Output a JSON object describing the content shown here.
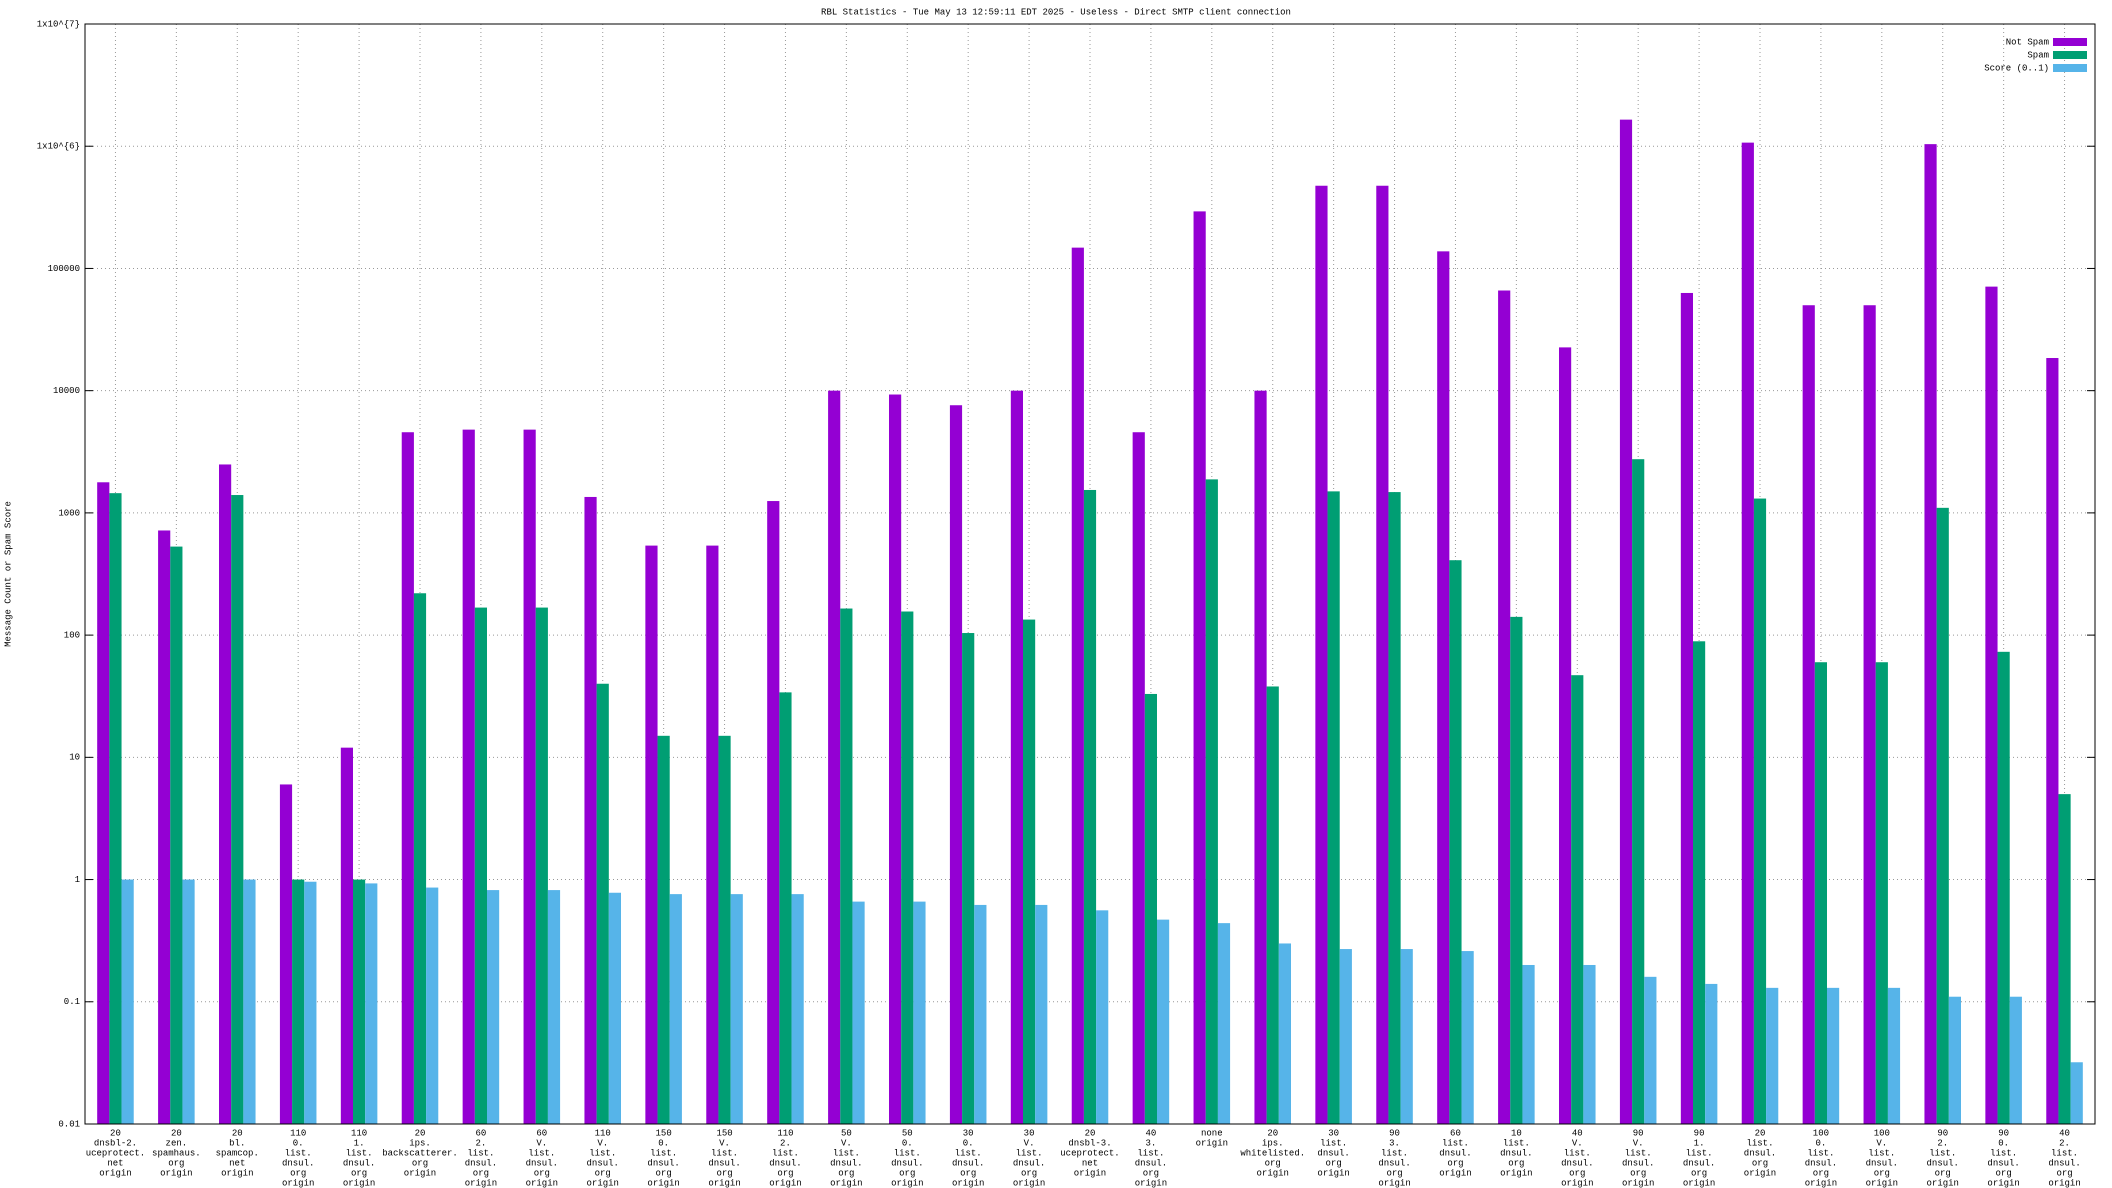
{
  "chart_data": {
    "type": "bar",
    "title": "RBL Statistics - Tue May 13 12:59:11 EDT 2025 - Useless - Direct SMTP client connection",
    "y_label": "Message Count or Spam Score",
    "log_y": true,
    "grid": true,
    "legend_position": "top-right",
    "ylim": [
      0.01,
      10000000
    ],
    "yticks": [
      0.01,
      0.1,
      1,
      10,
      100,
      1000,
      10000,
      100000,
      {
        "value": 1000000,
        "label": "1x10^{6}"
      },
      {
        "value": 10000000,
        "label": "1x10^{7}"
      }
    ],
    "categories": [
      [
        "20",
        "dnsbl-2.",
        "uceprotect.",
        "net",
        "origin"
      ],
      [
        "20",
        "zen.",
        "spamhaus.",
        "org",
        "origin"
      ],
      [
        "20",
        "bl.",
        "spamcop.",
        "net",
        "origin"
      ],
      [
        "110",
        "0.",
        "list.",
        "dnsul.",
        "org",
        "origin"
      ],
      [
        "110",
        "1.",
        "list.",
        "dnsul.",
        "org",
        "origin"
      ],
      [
        "20",
        "ips.",
        "backscatterer.",
        "org",
        "origin"
      ],
      [
        "60",
        "2.",
        "list.",
        "dnsul.",
        "org",
        "origin"
      ],
      [
        "60",
        "V.",
        "list.",
        "dnsul.",
        "org",
        "origin"
      ],
      [
        "110",
        "V.",
        "list.",
        "dnsul.",
        "org",
        "origin"
      ],
      [
        "150",
        "0.",
        "list.",
        "dnsul.",
        "org",
        "origin"
      ],
      [
        "150",
        "V.",
        "list.",
        "dnsul.",
        "org",
        "origin"
      ],
      [
        "110",
        "2.",
        "list.",
        "dnsul.",
        "org",
        "origin"
      ],
      [
        "50",
        "V.",
        "list.",
        "dnsul.",
        "org",
        "origin"
      ],
      [
        "50",
        "0.",
        "list.",
        "dnsul.",
        "org",
        "origin"
      ],
      [
        "30",
        "0.",
        "list.",
        "dnsul.",
        "org",
        "origin"
      ],
      [
        "30",
        "V.",
        "list.",
        "dnsul.",
        "org",
        "origin"
      ],
      [
        "20",
        "dnsbl-3.",
        "uceprotect.",
        "net",
        "origin"
      ],
      [
        "40",
        "3.",
        "list.",
        "dnsul.",
        "org",
        "origin"
      ],
      [
        "none",
        "origin"
      ],
      [
        "20",
        "ips.",
        "whitelisted.",
        "org",
        "origin"
      ],
      [
        "30",
        "list.",
        "dnsul.",
        "org",
        "origin"
      ],
      [
        "90",
        "3.",
        "list.",
        "dnsul.",
        "org",
        "origin"
      ],
      [
        "60",
        "list.",
        "dnsul.",
        "org",
        "origin"
      ],
      [
        "10",
        "list.",
        "dnsul.",
        "org",
        "origin"
      ],
      [
        "40",
        "V.",
        "list.",
        "dnsul.",
        "org",
        "origin"
      ],
      [
        "90",
        "V.",
        "list.",
        "dnsul.",
        "org",
        "origin"
      ],
      [
        "90",
        "1.",
        "list.",
        "dnsul.",
        "org",
        "origin"
      ],
      [
        "20",
        "list.",
        "dnsul.",
        "org",
        "origin"
      ],
      [
        "100",
        "0.",
        "list.",
        "dnsul.",
        "org",
        "origin"
      ],
      [
        "100",
        "V.",
        "list.",
        "dnsul.",
        "org",
        "origin"
      ],
      [
        "90",
        "2.",
        "list.",
        "dnsul.",
        "org",
        "origin"
      ],
      [
        "90",
        "0.",
        "list.",
        "dnsul.",
        "org",
        "origin"
      ],
      [
        "40",
        "2.",
        "list.",
        "dnsul.",
        "org",
        "origin"
      ]
    ],
    "series": [
      {
        "name": "Not Spam",
        "color": "#9400d3",
        "values": [
          1780,
          718,
          2490,
          6,
          12,
          4570,
          4800,
          4800,
          1350,
          540,
          540,
          1250,
          10000,
          9300,
          7600,
          10000,
          148000,
          4570,
          293000,
          10000,
          475000,
          475000,
          138000,
          66000,
          22600,
          1650000,
          63000,
          1070000,
          50000,
          50000,
          1040000,
          71000,
          18500
        ]
      },
      {
        "name": "Spam",
        "color": "#009e73",
        "values": [
          1450,
          530,
          1400,
          1,
          1,
          220,
          168,
          168,
          40,
          15,
          15,
          34,
          165,
          156,
          104,
          134,
          1540,
          33,
          1880,
          38,
          1500,
          1480,
          410,
          141,
          47,
          2750,
          89,
          1310,
          60,
          60,
          1100,
          73,
          5
        ]
      },
      {
        "name": "Score (0..1)",
        "color": "#56b4e9",
        "values": [
          1,
          1,
          1,
          0.96,
          0.93,
          0.86,
          0.82,
          0.82,
          0.78,
          0.76,
          0.76,
          0.76,
          0.66,
          0.66,
          0.62,
          0.62,
          0.56,
          0.47,
          0.44,
          0.3,
          0.27,
          0.27,
          0.26,
          0.2,
          0.2,
          0.16,
          0.14,
          0.13,
          0.13,
          0.13,
          0.11,
          0.11,
          0.032
        ]
      }
    ]
  }
}
